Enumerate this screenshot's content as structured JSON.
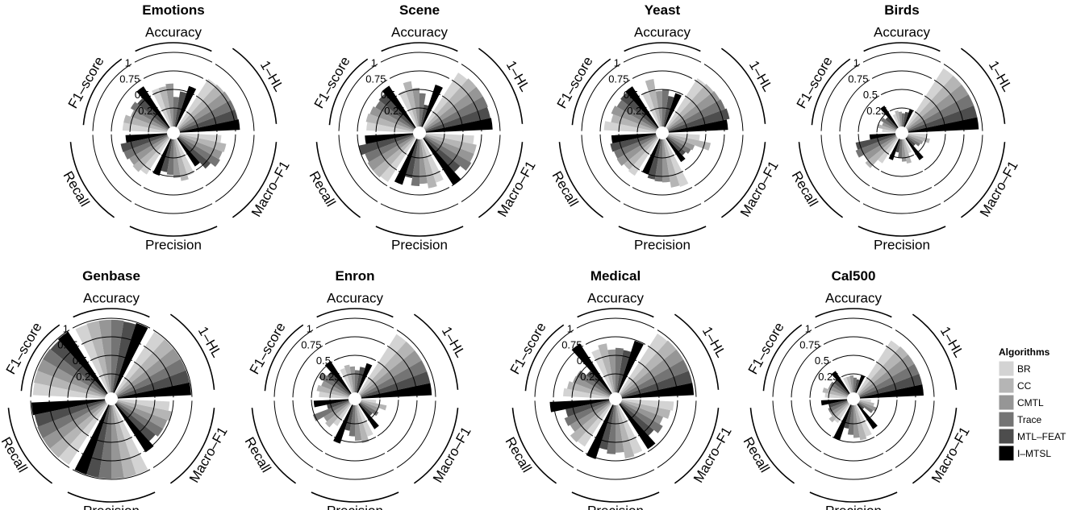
{
  "chart_data": {
    "type": "polar-bar",
    "legend": {
      "title": "Algorithms",
      "entries": [
        {
          "name": "BR",
          "color": "#d3d3d3"
        },
        {
          "name": "CC",
          "color": "#b5b5b5"
        },
        {
          "name": "CMTL",
          "color": "#969696"
        },
        {
          "name": "Trace",
          "color": "#747474"
        },
        {
          "name": "MTL–FEAT",
          "color": "#4d4d4d"
        },
        {
          "name": "I–MTSL",
          "color": "#000000"
        }
      ],
      "placement": "right"
    },
    "categories": [
      "Accuracy",
      "1–HL",
      "Macro–F1",
      "Precision",
      "Recall",
      "F1–score"
    ],
    "radial_ticks": [
      "0.25",
      "0.5",
      "0.75",
      "1"
    ],
    "rlim": [
      0,
      1
    ],
    "panels": [
      {
        "title": "Emotions",
        "values": [
          [
            0.55,
            0.55,
            0.58,
            0.4,
            0.48,
            0.58
          ],
          [
            0.78,
            0.79,
            0.8,
            0.8,
            0.8,
            0.81
          ],
          [
            0.56,
            0.64,
            0.62,
            0.64,
            0.56,
            0.45
          ],
          [
            0.52,
            0.57,
            0.52,
            0.48,
            0.45,
            0.52
          ],
          [
            0.58,
            0.62,
            0.6,
            0.63,
            0.64,
            0.56
          ],
          [
            0.6,
            0.6,
            0.53,
            0.58,
            0.54,
            0.66
          ]
        ]
      },
      {
        "title": "Scene",
        "values": [
          [
            0.52,
            0.62,
            0.52,
            0.45,
            0.3,
            0.6
          ],
          [
            0.88,
            0.9,
            0.9,
            0.9,
            0.89,
            0.9
          ],
          [
            0.65,
            0.7,
            0.7,
            0.72,
            0.62,
            0.75
          ],
          [
            0.62,
            0.67,
            0.6,
            0.63,
            0.53,
            0.65
          ],
          [
            0.7,
            0.72,
            0.72,
            0.7,
            0.75,
            0.65
          ],
          [
            0.63,
            0.65,
            0.63,
            0.6,
            0.62,
            0.67
          ]
        ]
      },
      {
        "title": "Yeast",
        "values": [
          [
            0.5,
            0.65,
            0.48,
            0.5,
            0.42,
            0.48
          ],
          [
            0.79,
            0.8,
            0.81,
            0.82,
            0.84,
            0.8
          ],
          [
            0.42,
            0.58,
            0.38,
            0.36,
            0.32,
            0.38
          ],
          [
            0.68,
            0.66,
            0.58,
            0.57,
            0.55,
            0.5
          ],
          [
            0.6,
            0.58,
            0.62,
            0.61,
            0.63,
            0.6
          ],
          [
            0.7,
            0.62,
            0.65,
            0.62,
            0.64,
            0.66
          ]
        ]
      },
      {
        "title": "Birds",
        "values": [
          [
            0.18,
            0.22,
            0.2,
            0.18,
            0.2,
            0.25
          ],
          [
            0.95,
            0.95,
            0.95,
            0.95,
            0.95,
            0.95
          ],
          [
            0.25,
            0.3,
            0.22,
            0.2,
            0.15,
            0.35
          ],
          [
            0.2,
            0.33,
            0.3,
            0.25,
            0.18,
            0.3
          ],
          [
            0.4,
            0.55,
            0.5,
            0.58,
            0.55,
            0.35
          ],
          [
            0.18,
            0.25,
            0.2,
            0.24,
            0.2,
            0.35
          ]
        ]
      },
      {
        "title": "Genbase",
        "values": [
          [
            0.97,
            0.98,
            0.98,
            0.98,
            0.97,
            0.99
          ],
          [
            0.99,
            0.99,
            0.99,
            0.99,
            0.99,
            0.99
          ],
          [
            0.7,
            0.75,
            0.72,
            0.72,
            0.68,
            0.77
          ],
          [
            0.99,
            0.99,
            0.99,
            0.99,
            0.99,
            0.99
          ],
          [
            0.97,
            0.98,
            0.98,
            0.98,
            0.97,
            0.99
          ],
          [
            0.97,
            0.98,
            0.98,
            0.98,
            0.97,
            0.99
          ]
        ]
      },
      {
        "title": "Enron",
        "values": [
          [
            0.35,
            0.38,
            0.35,
            0.3,
            0.35,
            0.42
          ],
          [
            0.95,
            0.95,
            0.95,
            0.95,
            0.95,
            0.95
          ],
          [
            0.2,
            0.35,
            0.25,
            0.28,
            0.22,
            0.4
          ],
          [
            0.45,
            0.52,
            0.48,
            0.42,
            0.35,
            0.55
          ],
          [
            0.35,
            0.43,
            0.4,
            0.52,
            0.3,
            0.47
          ],
          [
            0.4,
            0.44,
            0.4,
            0.48,
            0.4,
            0.52
          ]
        ]
      },
      {
        "title": "Medical",
        "values": [
          [
            0.62,
            0.67,
            0.58,
            0.6,
            0.58,
            0.74
          ],
          [
            0.96,
            0.97,
            0.97,
            0.97,
            0.97,
            0.97
          ],
          [
            0.7,
            0.67,
            0.6,
            0.65,
            0.58,
            0.72
          ],
          [
            0.7,
            0.73,
            0.64,
            0.66,
            0.61,
            0.77
          ],
          [
            0.68,
            0.7,
            0.62,
            0.65,
            0.6,
            0.8
          ],
          [
            0.62,
            0.58,
            0.53,
            0.52,
            0.42,
            0.8
          ]
        ]
      },
      {
        "title": "Cal500",
        "values": [
          [
            0.22,
            0.22,
            0.23,
            0.2,
            0.18,
            0.25
          ],
          [
            0.85,
            0.86,
            0.86,
            0.86,
            0.86,
            0.86
          ],
          [
            0.15,
            0.2,
            0.25,
            0.22,
            0.1,
            0.4
          ],
          [
            0.45,
            0.48,
            0.44,
            0.4,
            0.32,
            0.5
          ],
          [
            0.3,
            0.34,
            0.28,
            0.28,
            0.25,
            0.35
          ],
          [
            0.3,
            0.34,
            0.28,
            0.28,
            0.25,
            0.36
          ]
        ]
      }
    ]
  }
}
